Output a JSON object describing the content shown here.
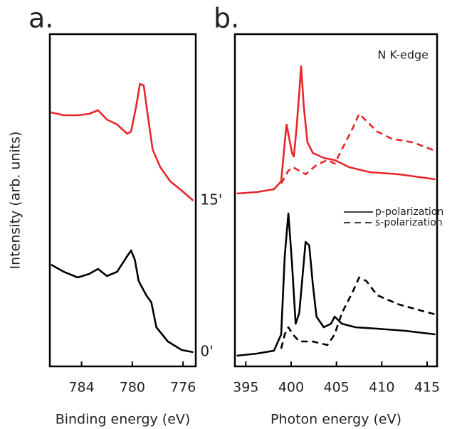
{
  "chart_data": [
    {
      "type": "line",
      "panel_label": "a.",
      "xlabel": "Binding energy (eV)",
      "ylabel": "Intensity (arb. units)",
      "xlim": [
        786.5,
        775
      ],
      "xticks": [
        784,
        780,
        776
      ],
      "ylim": [
        0,
        467
      ],
      "series": [
        {
          "name": "15'",
          "color": "#e8262a",
          "x": [
            786.4,
            785.4,
            784.3,
            783.4,
            782.7,
            782.0,
            781.2,
            780.4,
            780.1,
            779.7,
            779.4,
            779.1,
            778.8,
            778.4,
            777.8,
            777.0,
            776.1,
            775.2
          ],
          "values": [
            357,
            353,
            353,
            355,
            360,
            347,
            340,
            327,
            330,
            365,
            397,
            395,
            355,
            305,
            280,
            260,
            247,
            233
          ]
        },
        {
          "name": "0'",
          "color": "#000000",
          "x": [
            786.4,
            785.4,
            784.3,
            783.4,
            782.7,
            782.0,
            781.2,
            780.4,
            780.1,
            779.8,
            779.5,
            778.9,
            778.5,
            778.1,
            777.2,
            776.1,
            775.2
          ],
          "values": [
            143,
            133,
            125,
            130,
            137,
            127,
            133,
            155,
            163,
            150,
            120,
            100,
            90,
            55,
            35,
            23,
            20
          ]
        }
      ]
    },
    {
      "type": "line",
      "panel_label": "b.",
      "xlabel": "Photon energy (eV)",
      "annotation": "N K-edge",
      "xlim": [
        393.8,
        416.1
      ],
      "xticks": [
        395,
        400,
        405,
        410,
        415
      ],
      "ylim": [
        0,
        467
      ],
      "legend": [
        {
          "label": "p-polarization",
          "dash": "solid"
        },
        {
          "label": "s-polarization",
          "dash": "dashed"
        }
      ],
      "series": [
        {
          "color": "#e8262a",
          "dash": "solid",
          "x": [
            394.0,
            396.2,
            398.1,
            398.9,
            399.3,
            399.5,
            399.8,
            400.1,
            400.3,
            400.6,
            400.9,
            401.1,
            401.4,
            401.8,
            402.4,
            403.6,
            404.8,
            406.4,
            408.7,
            411.9,
            415.9
          ],
          "values": [
            243,
            245,
            249,
            260,
            315,
            340,
            320,
            300,
            295,
            335,
            385,
            422,
            365,
            315,
            300,
            293,
            290,
            280,
            273,
            270,
            263
          ]
        },
        {
          "color": "#e8262a",
          "dash": "dashed",
          "x": [
            398.9,
            399.7,
            400.2,
            400.9,
            401.6,
            402.8,
            404.0,
            404.8,
            405.6,
            406.8,
            407.5,
            408.3,
            409.5,
            411.1,
            413.4,
            415.9
          ],
          "values": [
            257,
            275,
            280,
            275,
            270,
            283,
            290,
            285,
            305,
            335,
            355,
            345,
            330,
            320,
            315,
            303
          ]
        },
        {
          "color": "#000000",
          "dash": "solid",
          "x": [
            394.0,
            396.2,
            398.1,
            398.9,
            399.3,
            399.7,
            400.1,
            400.5,
            400.9,
            401.6,
            402.0,
            402.4,
            402.8,
            403.6,
            404.4,
            404.8,
            405.6,
            407.1,
            409.5,
            412.6,
            415.9
          ],
          "values": [
            15,
            18,
            22,
            45,
            155,
            215,
            145,
            60,
            75,
            175,
            170,
            115,
            70,
            55,
            60,
            70,
            60,
            55,
            53,
            50,
            45
          ]
        },
        {
          "color": "#000000",
          "dash": "dashed",
          "x": [
            398.9,
            399.3,
            399.7,
            400.2,
            400.9,
            402.4,
            404.0,
            404.8,
            405.6,
            406.8,
            407.5,
            408.3,
            409.5,
            411.9,
            415.9
          ],
          "values": [
            25,
            45,
            55,
            45,
            35,
            35,
            30,
            45,
            75,
            105,
            125,
            120,
            100,
            87,
            73
          ]
        }
      ]
    }
  ]
}
